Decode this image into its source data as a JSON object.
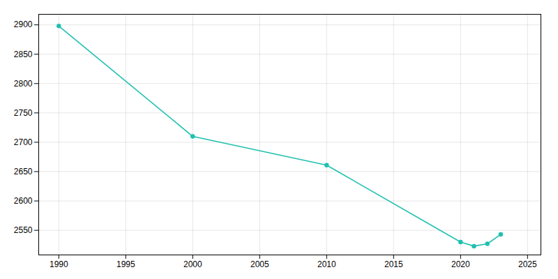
{
  "chart_data": {
    "type": "line",
    "x": [
      1990,
      2000,
      2010,
      2020,
      2021,
      2022,
      2023
    ],
    "values": [
      2898,
      2710,
      2661,
      2530,
      2523,
      2527,
      2543
    ],
    "color": "#20c0b0",
    "marker": "circle",
    "xlim": [
      1988.5,
      2026
    ],
    "ylim": [
      2508,
      2918
    ],
    "xticks": [
      1990,
      1995,
      2000,
      2005,
      2010,
      2015,
      2020,
      2025
    ],
    "yticks": [
      2550,
      2600,
      2650,
      2700,
      2750,
      2800,
      2850,
      2900
    ],
    "grid": true
  }
}
